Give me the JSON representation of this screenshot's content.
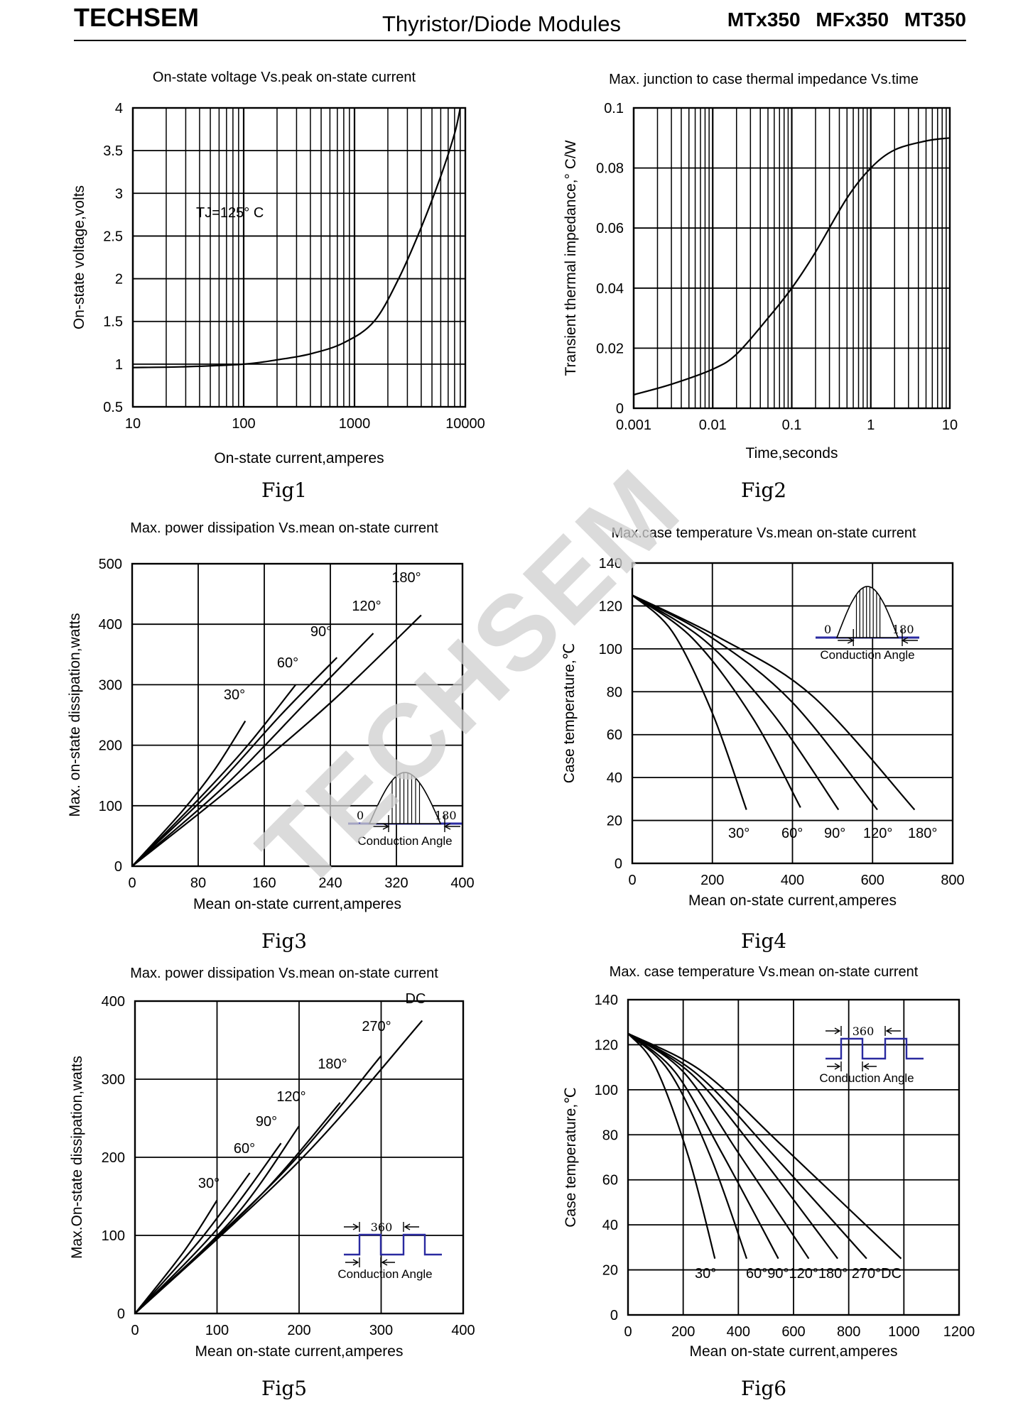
{
  "header": {
    "brand": "TECHSEM",
    "subtitle": "Thyristor/Diode Modules",
    "models": "MTx350 MFx350 MT350"
  },
  "watermark": "TECHSEM",
  "chart_data": [
    {
      "id": "fig1",
      "caption": "Fig1",
      "type": "line",
      "title": "On-state voltage Vs.peak on-state current",
      "xlabel": "On-state current,amperes",
      "ylabel": "On-state voltage,volts",
      "xscale": "log",
      "xlim": [
        10,
        10000
      ],
      "ylim": [
        0.5,
        4
      ],
      "xticks": [
        10,
        100,
        1000,
        10000
      ],
      "yticks": [
        0.5,
        1,
        1.5,
        2,
        2.5,
        3,
        3.5,
        4
      ],
      "ytick_labels": [
        "0.5",
        "1",
        "1.5",
        "2",
        "2.5",
        "3",
        "3.5",
        "4"
      ],
      "annotation": "TJ=125° C",
      "series": [
        {
          "x": [
            10,
            30,
            100,
            200,
            400,
            800,
            1500,
            2500,
            4000,
            6000,
            8000,
            9000
          ],
          "y": [
            0.96,
            0.97,
            1.0,
            1.05,
            1.12,
            1.25,
            1.5,
            2.0,
            2.6,
            3.2,
            3.7,
            4.0
          ]
        }
      ]
    },
    {
      "id": "fig2",
      "caption": "Fig2",
      "type": "line",
      "title": "Max. junction to case thermal impedance Vs.time",
      "xlabel": "Time,seconds",
      "ylabel": "Transient thermal impedance,° C/W",
      "xscale": "log",
      "xlim": [
        0.001,
        10
      ],
      "ylim": [
        0,
        0.1
      ],
      "xticks": [
        0.001,
        0.01,
        0.1,
        1,
        10
      ],
      "xtick_labels": [
        "0.001",
        "0.01",
        "0.1",
        "1",
        "10"
      ],
      "yticks": [
        0,
        0.02,
        0.04,
        0.06,
        0.08,
        0.1
      ],
      "ytick_labels": [
        "0",
        "0.02",
        "0.04",
        "0.06",
        "0.08",
        "0.1"
      ],
      "series": [
        {
          "x": [
            0.001,
            0.003,
            0.01,
            0.02,
            0.05,
            0.1,
            0.2,
            0.5,
            1,
            2,
            5,
            10
          ],
          "y": [
            0.0045,
            0.008,
            0.013,
            0.018,
            0.03,
            0.04,
            0.052,
            0.07,
            0.08,
            0.086,
            0.089,
            0.09
          ]
        }
      ]
    },
    {
      "id": "fig3",
      "caption": "Fig3",
      "type": "line",
      "title": "Max. power dissipation Vs.mean on-state current",
      "xlabel": "Mean on-state current,amperes",
      "ylabel": "Max. on-state dissipation,watts",
      "xlim": [
        0,
        400
      ],
      "ylim": [
        0,
        500
      ],
      "xticks": [
        0,
        80,
        160,
        240,
        320,
        400
      ],
      "yticks": [
        0,
        100,
        200,
        300,
        400,
        500
      ],
      "inset": {
        "kind": "sine",
        "start": "0",
        "end": "180",
        "label": "Conduction Angle"
      },
      "series": [
        {
          "name": "30°",
          "x": [
            0,
            60,
            100,
            137
          ],
          "y": [
            0,
            90,
            160,
            240
          ]
        },
        {
          "name": "60°",
          "x": [
            0,
            80,
            140,
            198
          ],
          "y": [
            0,
            110,
            200,
            300
          ]
        },
        {
          "name": "90°",
          "x": [
            0,
            100,
            180,
            248
          ],
          "y": [
            0,
            130,
            250,
            345
          ]
        },
        {
          "name": "120°",
          "x": [
            0,
            110,
            210,
            292
          ],
          "y": [
            0,
            130,
            270,
            385
          ]
        },
        {
          "name": "180°",
          "x": [
            0,
            120,
            240,
            350
          ],
          "y": [
            0,
            130,
            270,
            415
          ]
        }
      ]
    },
    {
      "id": "fig4",
      "caption": "Fig4",
      "type": "line",
      "title": "Max.case temperature Vs.mean on-state current",
      "xlabel": "Mean on-state current,amperes",
      "ylabel": "Case temperature,℃",
      "xlim": [
        0,
        800
      ],
      "ylim": [
        0,
        140
      ],
      "xticks": [
        0,
        200,
        400,
        600,
        800
      ],
      "yticks": [
        0,
        20,
        40,
        60,
        80,
        100,
        120,
        140
      ],
      "inset": {
        "kind": "sine",
        "start": "0",
        "end": "180",
        "label": "Conduction Angle"
      },
      "series": [
        {
          "name": "30°",
          "x": [
            0,
            100,
            200,
            285
          ],
          "y": [
            125,
            108,
            70,
            25
          ]
        },
        {
          "name": "60°",
          "x": [
            0,
            150,
            300,
            420
          ],
          "y": [
            125,
            105,
            68,
            26
          ]
        },
        {
          "name": "90°",
          "x": [
            0,
            180,
            350,
            515
          ],
          "y": [
            125,
            104,
            70,
            25
          ]
        },
        {
          "name": "120°",
          "x": [
            0,
            200,
            400,
            612
          ],
          "y": [
            125,
            105,
            75,
            25
          ]
        },
        {
          "name": "180°",
          "x": [
            0,
            220,
            450,
            705
          ],
          "y": [
            125,
            105,
            78,
            25
          ]
        }
      ],
      "curve_labels": [
        "30°",
        "60°",
        "90°",
        "120°",
        "180°"
      ]
    },
    {
      "id": "fig5",
      "caption": "Fig5",
      "type": "line",
      "title": "Max. power dissipation Vs.mean on-state current",
      "xlabel": "Mean on-state current,amperes",
      "ylabel": "Max.On-state dissipation,watts",
      "xlim": [
        0,
        400
      ],
      "ylim": [
        0,
        400
      ],
      "xticks": [
        0,
        100,
        200,
        300,
        400
      ],
      "yticks": [
        0,
        100,
        200,
        300,
        400
      ],
      "inset": {
        "kind": "square",
        "period": "360",
        "label": "Conduction Angle"
      },
      "series": [
        {
          "name": "30°",
          "x": [
            0,
            60,
            100
          ],
          "y": [
            0,
            80,
            145
          ]
        },
        {
          "name": "60°",
          "x": [
            0,
            80,
            140
          ],
          "y": [
            0,
            95,
            180
          ]
        },
        {
          "name": "90°",
          "x": [
            0,
            100,
            178
          ],
          "y": [
            0,
            108,
            218
          ]
        },
        {
          "name": "120°",
          "x": [
            0,
            120,
            200
          ],
          "y": [
            0,
            122,
            240
          ]
        },
        {
          "name": "180°",
          "x": [
            0,
            150,
            250
          ],
          "y": [
            0,
            148,
            270
          ]
        },
        {
          "name": "270°",
          "x": [
            0,
            180,
            300
          ],
          "y": [
            0,
            180,
            330
          ]
        },
        {
          "name": "DC",
          "x": [
            0,
            200,
            350
          ],
          "y": [
            0,
            195,
            375
          ]
        }
      ]
    },
    {
      "id": "fig6",
      "caption": "Fig6",
      "type": "line",
      "title": "Max. case temperature Vs.mean on-state current",
      "xlabel": "Mean on-state current,amperes",
      "ylabel": "Case temperature,℃",
      "xlim": [
        0,
        1200
      ],
      "ylim": [
        0,
        140
      ],
      "xticks": [
        0,
        200,
        400,
        600,
        800,
        1000,
        1200
      ],
      "yticks": [
        0,
        20,
        40,
        60,
        80,
        100,
        120,
        140
      ],
      "inset": {
        "kind": "square",
        "period": "360",
        "label": "Conduction Angle"
      },
      "series": [
        {
          "name": "30°",
          "x": [
            0,
            100,
            220,
            315
          ],
          "y": [
            125,
            110,
            70,
            25
          ]
        },
        {
          "name": "60°",
          "x": [
            0,
            150,
            300,
            430
          ],
          "y": [
            125,
            108,
            70,
            25
          ]
        },
        {
          "name": "90°",
          "x": [
            0,
            170,
            340,
            545
          ],
          "y": [
            125,
            108,
            72,
            25
          ]
        },
        {
          "name": "120°",
          "x": [
            0,
            200,
            400,
            655
          ],
          "y": [
            125,
            108,
            72,
            25
          ]
        },
        {
          "name": "180°",
          "x": [
            0,
            230,
            470,
            760
          ],
          "y": [
            125,
            107,
            72,
            25
          ]
        },
        {
          "name": "270°",
          "x": [
            0,
            250,
            520,
            865
          ],
          "y": [
            125,
            107,
            72,
            25
          ]
        },
        {
          "name": "DC",
          "x": [
            0,
            270,
            560,
            990
          ],
          "y": [
            125,
            108,
            75,
            25
          ]
        }
      ],
      "curve_labels": [
        "30°",
        "60°90°120°180° 270°DC"
      ]
    }
  ]
}
